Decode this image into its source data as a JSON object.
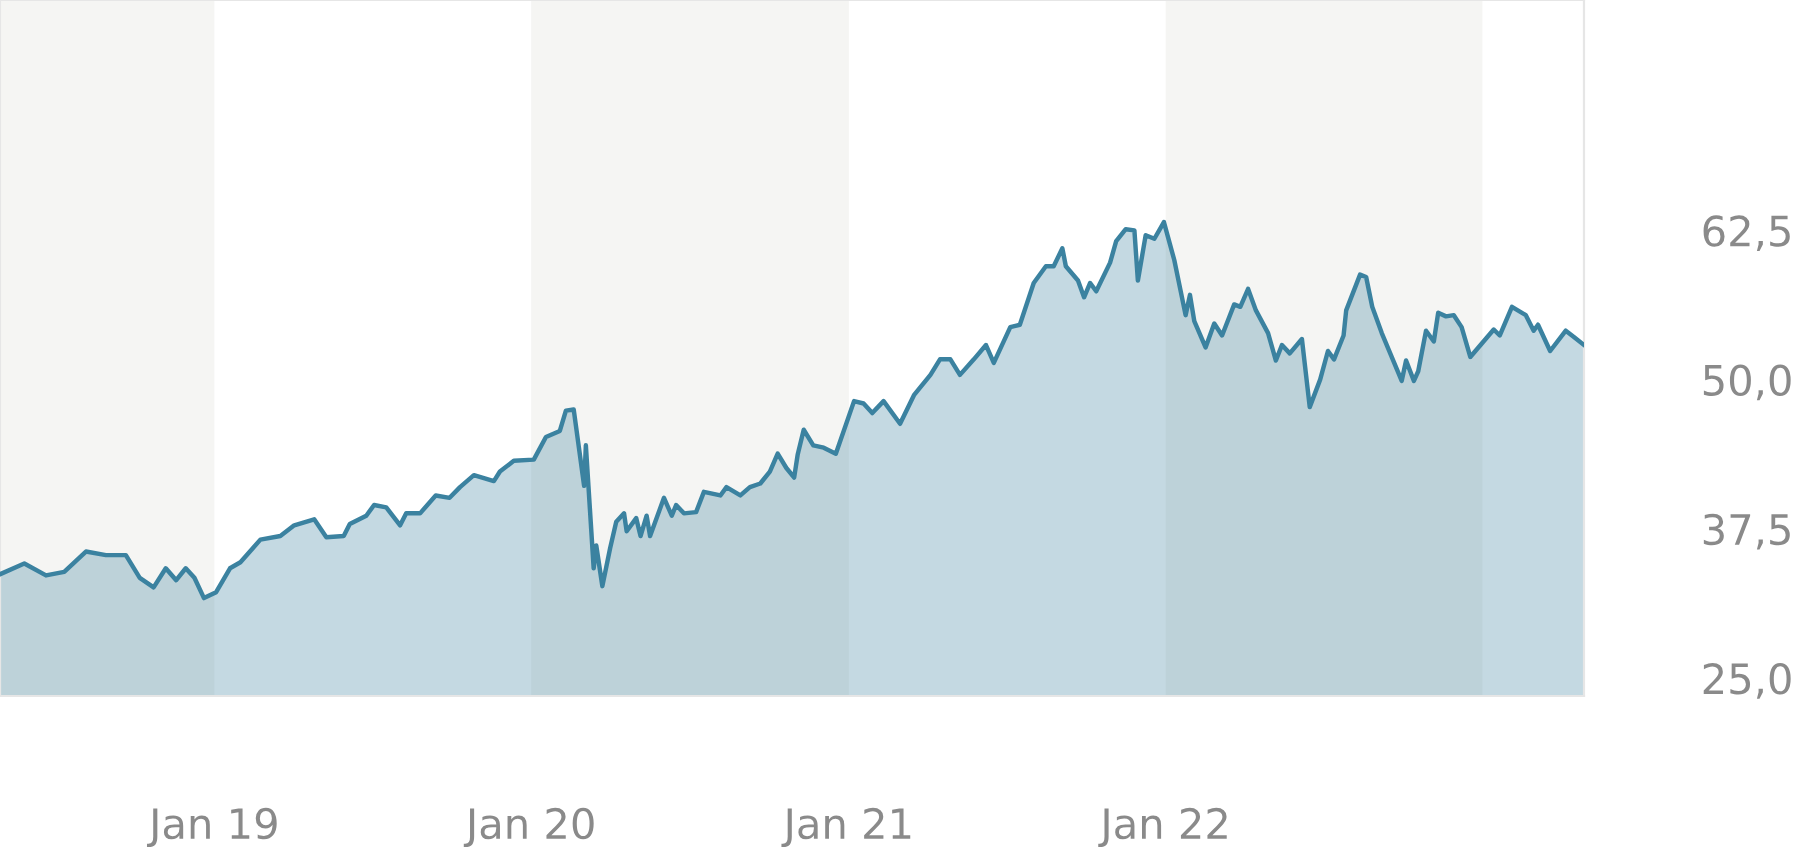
{
  "chart_data": {
    "type": "area",
    "x": [
      "2018-04-29",
      "2018-05-27",
      "2018-06-21",
      "2018-07-12",
      "2018-08-06",
      "2018-08-29",
      "2018-09-21",
      "2018-10-07",
      "2018-10-23",
      "2018-11-06",
      "2018-11-18",
      "2018-11-29",
      "2018-12-09",
      "2018-12-20",
      "2019-01-03",
      "2019-01-19",
      "2019-01-31",
      "2019-02-23",
      "2019-03-18",
      "2019-04-03",
      "2019-04-26",
      "2019-05-10",
      "2019-05-30",
      "2019-06-06",
      "2019-06-25",
      "2019-07-04",
      "2019-07-18",
      "2019-08-03",
      "2019-08-10",
      "2019-08-26",
      "2019-09-13",
      "2019-09-29",
      "2019-10-11",
      "2019-10-27",
      "2019-11-19",
      "2019-11-26",
      "2019-12-12",
      "2020-01-04",
      "2020-01-18",
      "2020-02-03",
      "2020-02-10",
      "2020-02-19",
      "2020-03-02",
      "2020-03-04",
      "2020-03-13",
      "2020-03-16",
      "2020-03-23",
      "2020-04-01",
      "2020-04-08",
      "2020-04-17",
      "2020-04-20",
      "2020-05-01",
      "2020-05-06",
      "2020-05-13",
      "2020-05-17",
      "2020-06-02",
      "2020-06-11",
      "2020-06-16",
      "2020-06-25",
      "2020-07-09",
      "2020-07-18",
      "2020-08-06",
      "2020-08-13",
      "2020-08-29",
      "2020-09-09",
      "2020-09-21",
      "2020-10-02",
      "2020-10-11",
      "2020-10-21",
      "2020-10-30",
      "2020-11-03",
      "2020-11-10",
      "2020-11-21",
      "2020-12-03",
      "2020-12-17",
      "2021-01-07",
      "2021-01-18",
      "2021-01-28",
      "2021-02-10",
      "2021-03-01",
      "2021-03-17",
      "2021-04-05",
      "2021-04-16",
      "2021-04-28",
      "2021-05-09",
      "2021-05-25",
      "2021-06-08",
      "2021-06-17",
      "2021-07-06",
      "2021-07-17",
      "2021-08-02",
      "2021-08-16",
      "2021-08-25",
      "2021-09-04",
      "2021-09-08",
      "2021-09-22",
      "2021-09-29",
      "2021-10-06",
      "2021-10-13",
      "2021-10-29",
      "2021-11-05",
      "2021-11-16",
      "2021-11-26",
      "2021-11-30",
      "2021-12-09",
      "2021-12-19",
      "2021-12-30",
      "2022-01-11",
      "2022-01-24",
      "2022-01-29",
      "2022-02-03",
      "2022-02-16",
      "2022-02-26",
      "2022-03-07",
      "2022-03-21",
      "2022-03-28",
      "2022-04-06",
      "2022-04-15",
      "2022-04-29",
      "2022-05-08",
      "2022-05-15",
      "2022-05-24",
      "2022-06-07",
      "2022-06-16",
      "2022-06-28",
      "2022-07-07",
      "2022-07-14",
      "2022-07-25",
      "2022-07-28",
      "2022-08-13",
      "2022-08-20",
      "2022-08-27",
      "2022-09-07",
      "2022-09-30",
      "2022-10-05",
      "2022-10-14",
      "2022-10-19",
      "2022-10-28",
      "2022-11-06",
      "2022-11-11",
      "2022-11-20",
      "2022-11-29",
      "2022-12-08",
      "2022-12-18",
      "2023-01-14",
      "2023-01-21",
      "2023-02-04",
      "2023-02-20",
      "2023-03-01",
      "2023-03-06",
      "2023-03-20",
      "2023-04-07",
      "2023-04-16",
      "2023-04-28"
    ],
    "series": [
      {
        "color": "#3b82a0",
        "values": [
          33.7,
          34.6,
          33.6,
          33.9,
          35.6,
          35.3,
          35.3,
          33.4,
          32.6,
          34.2,
          33.2,
          34.2,
          33.4,
          31.7,
          32.2,
          34.2,
          34.7,
          36.6,
          36.9,
          37.8,
          38.3,
          36.8,
          36.9,
          37.9,
          38.6,
          39.5,
          39.3,
          37.8,
          38.8,
          38.8,
          40.3,
          40.1,
          41.0,
          42.0,
          41.5,
          42.3,
          43.2,
          43.3,
          45.2,
          45.7,
          47.4,
          47.5,
          41.1,
          44.5,
          34.2,
          36.1,
          32.7,
          35.9,
          38.1,
          38.8,
          37.3,
          38.4,
          36.9,
          38.6,
          36.9,
          40.1,
          38.6,
          39.5,
          38.8,
          38.9,
          40.6,
          40.3,
          41.0,
          40.3,
          41.0,
          41.3,
          42.3,
          43.8,
          42.6,
          41.8,
          43.7,
          45.8,
          44.5,
          44.3,
          43.8,
          48.2,
          48.0,
          47.2,
          48.2,
          46.3,
          48.7,
          50.4,
          51.7,
          51.7,
          50.4,
          51.7,
          52.9,
          51.4,
          54.4,
          54.6,
          58.1,
          59.5,
          59.5,
          61.0,
          59.5,
          58.3,
          56.9,
          58.1,
          57.4,
          59.8,
          61.6,
          62.6,
          62.5,
          58.3,
          62.1,
          61.8,
          63.2,
          60.0,
          55.4,
          57.1,
          54.9,
          52.7,
          54.7,
          53.7,
          56.3,
          56.1,
          57.6,
          55.8,
          53.9,
          51.6,
          52.9,
          52.2,
          53.4,
          47.7,
          50.0,
          52.4,
          51.7,
          53.7,
          55.8,
          58.8,
          58.6,
          56.1,
          53.9,
          49.9,
          51.6,
          49.9,
          50.7,
          54.1,
          53.2,
          55.6,
          55.3,
          55.4,
          54.4,
          51.9,
          54.2,
          53.7,
          56.1,
          55.4,
          54.1,
          54.6,
          52.4,
          54.1,
          53.6,
          52.9
        ]
      }
    ],
    "xlim": [
      "2018-04-29",
      "2023-04-28"
    ],
    "xticks": [
      {
        "value": "2019-01-01",
        "label": "Jan 19"
      },
      {
        "value": "2020-01-01",
        "label": "Jan 20"
      },
      {
        "value": "2021-01-01",
        "label": "Jan 21"
      },
      {
        "value": "2022-01-01",
        "label": "Jan 22"
      }
    ],
    "ylim": [
      23.5,
      81.8
    ],
    "yticks": [
      {
        "value": 25,
        "label": "25,0"
      },
      {
        "value": 37.5,
        "label": "37,5"
      },
      {
        "value": 50,
        "label": "50,0"
      },
      {
        "value": 62.5,
        "label": "62,5"
      }
    ],
    "bands": [
      {
        "axis": "x",
        "from": "2018-04-29",
        "to": "2019-01-01",
        "color": "#f5f5f3"
      },
      {
        "axis": "x",
        "from": "2020-01-01",
        "to": "2021-01-01",
        "color": "#f5f5f3"
      },
      {
        "axis": "x",
        "from": "2022-01-01",
        "to": "2023-01-01",
        "color": "#f5f5f3"
      }
    ],
    "grid": false
  }
}
